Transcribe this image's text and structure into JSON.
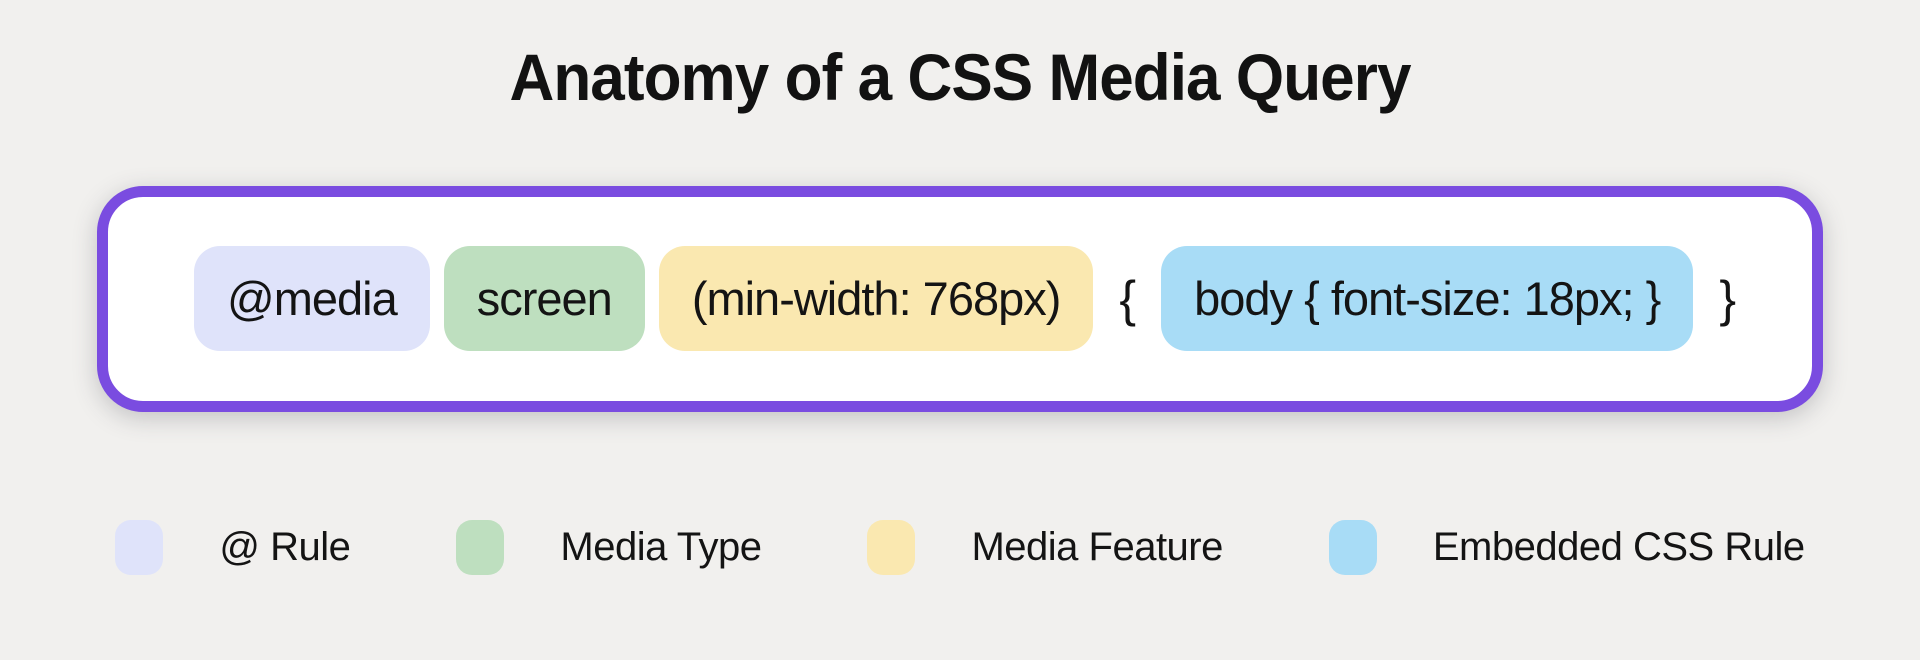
{
  "title": "Anatomy of a CSS Media Query",
  "colors": {
    "background": "#f1f0ee",
    "box_border": "#7a4ce0",
    "box_fill": "#ffffff",
    "text": "#141414",
    "at_rule": "#dfe3fa",
    "media_type": "#bedfbf",
    "media_feature": "#fae8b0",
    "embedded_css_rule": "#a8dcf6"
  },
  "query": {
    "tokens": [
      {
        "id": "at-rule",
        "text": "@media",
        "color": "#dfe3fa"
      },
      {
        "id": "media-type",
        "text": "screen",
        "color": "#bedfbf"
      },
      {
        "id": "media-feature",
        "text": "(min-width: 768px)",
        "color": "#fae8b0"
      },
      {
        "id": "open-brace",
        "text": "{",
        "color": null
      },
      {
        "id": "embedded-css-rule",
        "text": "body { font-size: 18px; }",
        "color": "#a8dcf6"
      },
      {
        "id": "close-brace",
        "text": "}",
        "color": null
      }
    ]
  },
  "legend": {
    "items": [
      {
        "id": "at-rule",
        "label": "@ Rule",
        "color": "#dfe3fa"
      },
      {
        "id": "media-type",
        "label": "Media Type",
        "color": "#bedfbf"
      },
      {
        "id": "media-feature",
        "label": "Media Feature",
        "color": "#fae8b0"
      },
      {
        "id": "embedded-css-rule",
        "label": "Embedded CSS Rule",
        "color": "#a8dcf6"
      }
    ]
  }
}
